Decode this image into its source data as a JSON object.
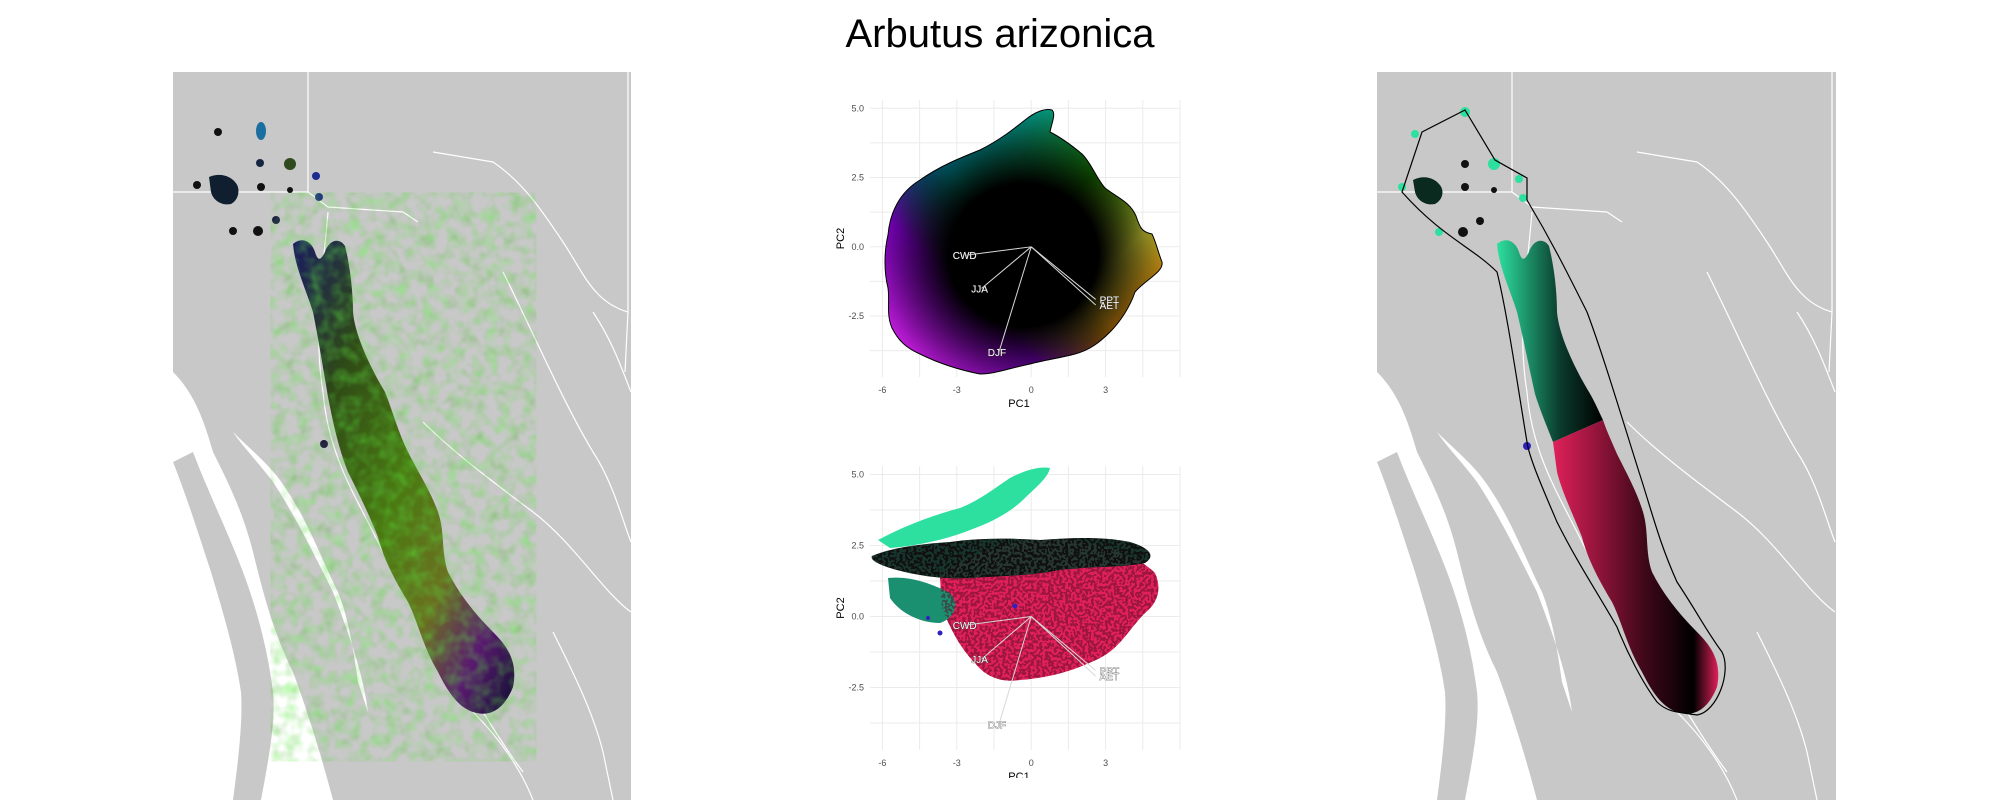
{
  "title": "Arbutus arizonica",
  "colors": {
    "land": "#c8c8c8",
    "border": "#ffffff",
    "sea": "#ffffff",
    "hull": "#000000",
    "grid": "#ebebeb",
    "loading": "#d0d0d0",
    "cluster_teal": "#2de0a0",
    "cluster_pink": "#e0205a",
    "cluster_black": "#111111",
    "cluster_blue": "#3020c0"
  },
  "pca_plots": [
    {
      "id": "pca-continuous",
      "xlabel": "PC1",
      "ylabel": "PC2",
      "xticks": [
        "-6",
        "-3",
        "0",
        "3"
      ],
      "yticks": [
        "5.0",
        "2.5",
        "0.0",
        "-2.5"
      ],
      "coloring": "continuous RGB by PC position"
    },
    {
      "id": "pca-clusters",
      "xlabel": "PC1",
      "ylabel": "PC2",
      "xticks": [
        "-6",
        "-3",
        "0",
        "3"
      ],
      "yticks": [
        "5.0",
        "2.5",
        "0.0",
        "-2.5"
      ],
      "coloring": "cluster colors"
    }
  ],
  "loadings": [
    {
      "label": "CWD",
      "x": -2.6,
      "y": -0.3
    },
    {
      "label": "JJA",
      "x": -2.0,
      "y": -1.5
    },
    {
      "label": "DJF",
      "x": -1.3,
      "y": -3.8
    },
    {
      "label": "PPT",
      "x": 2.6,
      "y": -1.9
    },
    {
      "label": "AET",
      "x": 2.6,
      "y": -2.1
    }
  ],
  "maps": [
    {
      "id": "map-continuous",
      "legend": "continuous climate color map"
    },
    {
      "id": "map-clusters",
      "legend": "cluster color map with convex hull"
    }
  ]
}
